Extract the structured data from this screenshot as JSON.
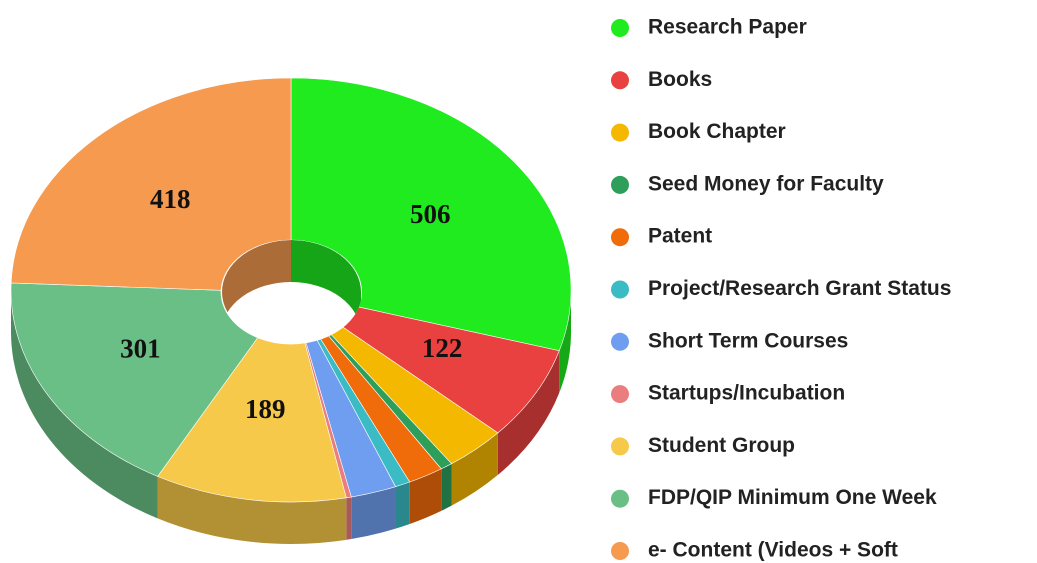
{
  "chart_data": {
    "type": "donut3d",
    "categories": [
      "Research Paper",
      "Books",
      "Book Chapter",
      "Seed Money for Faculty",
      "Patent",
      "Project/Research Grant Status",
      "Short Term Courses",
      "Startups/Incubation",
      "Student Group",
      "FDP/QIP Minimum One Week",
      "e- Content (Videos + Soft"
    ],
    "values": [
      506,
      122,
      60,
      12,
      35,
      15,
      45,
      5,
      189,
      301,
      418
    ],
    "colors": [
      "#1feb1f",
      "#e8413f",
      "#f5b800",
      "#2e9e5b",
      "#f06b0a",
      "#3bbcc4",
      "#6f9ef0",
      "#ea7d7d",
      "#f7c94a",
      "#6abf86",
      "#f59a4f"
    ]
  }
}
